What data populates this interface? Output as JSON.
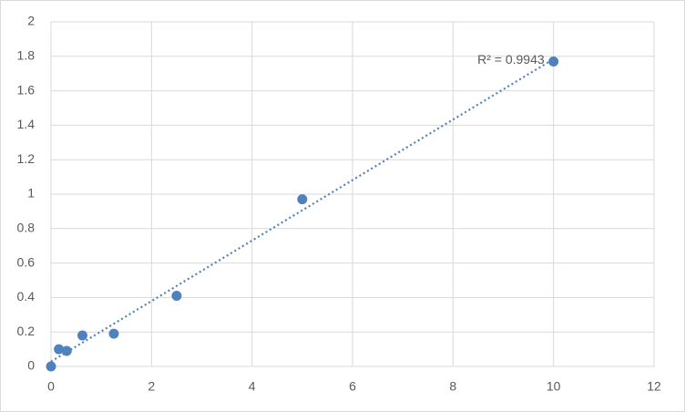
{
  "chart_data": {
    "type": "scatter",
    "series": [
      {
        "color": "#4f81bd",
        "x": [
          0,
          0.156,
          0.3125,
          0.625,
          1.25,
          2.5,
          5,
          10
        ],
        "values": [
          0,
          0.1,
          0.09,
          0.18,
          0.19,
          0.41,
          0.97,
          1.77
        ]
      }
    ],
    "trendline": "linear",
    "annotation": "R² = 0.9943",
    "xlim": [
      0,
      12
    ],
    "xticks": [
      0,
      2,
      4,
      6,
      8,
      10,
      12
    ],
    "ylim": [
      0,
      2
    ],
    "yticks": [
      0,
      0.2,
      0.4,
      0.6,
      0.8,
      1,
      1.2,
      1.4,
      1.6,
      1.8,
      2
    ],
    "grid": true
  }
}
